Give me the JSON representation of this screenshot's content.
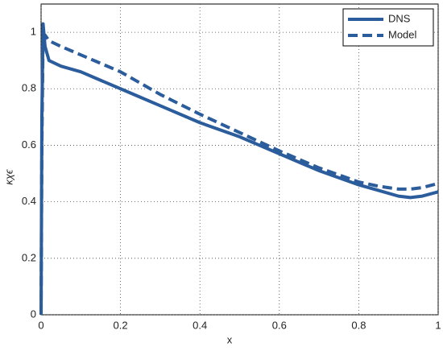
{
  "chart_data": {
    "type": "line",
    "x_label": "x",
    "y_label": "κχϵ",
    "x": [
      0,
      0.002,
      0.005,
      0.01,
      0.02,
      0.05,
      0.1,
      0.15,
      0.2,
      0.3,
      0.4,
      0.5,
      0.6,
      0.7,
      0.8,
      0.85,
      0.9,
      0.93,
      0.96,
      1.0
    ],
    "series": [
      {
        "name": "DNS",
        "color": "#2b5c9c",
        "dash": "solid",
        "values": [
          0,
          0.7,
          1.03,
          0.95,
          0.9,
          0.88,
          0.86,
          0.83,
          0.8,
          0.74,
          0.68,
          0.63,
          0.57,
          0.51,
          0.46,
          0.44,
          0.42,
          0.415,
          0.42,
          0.435
        ]
      },
      {
        "name": "Model",
        "color": "#2b5c9c",
        "dash": "dashed",
        "values": [
          0,
          0.6,
          0.98,
          0.99,
          0.97,
          0.95,
          0.92,
          0.89,
          0.86,
          0.78,
          0.71,
          0.645,
          0.58,
          0.52,
          0.47,
          0.455,
          0.445,
          0.445,
          0.45,
          0.465
        ]
      }
    ],
    "xlim": [
      0,
      1
    ],
    "xticks": [
      0,
      0.2,
      0.4,
      0.6,
      0.8,
      1
    ],
    "ylim": [
      0,
      1.1
    ],
    "yticks": [
      0,
      0.2,
      0.4,
      0.6,
      0.8,
      1
    ],
    "grid": true,
    "legend": "upper-right"
  }
}
